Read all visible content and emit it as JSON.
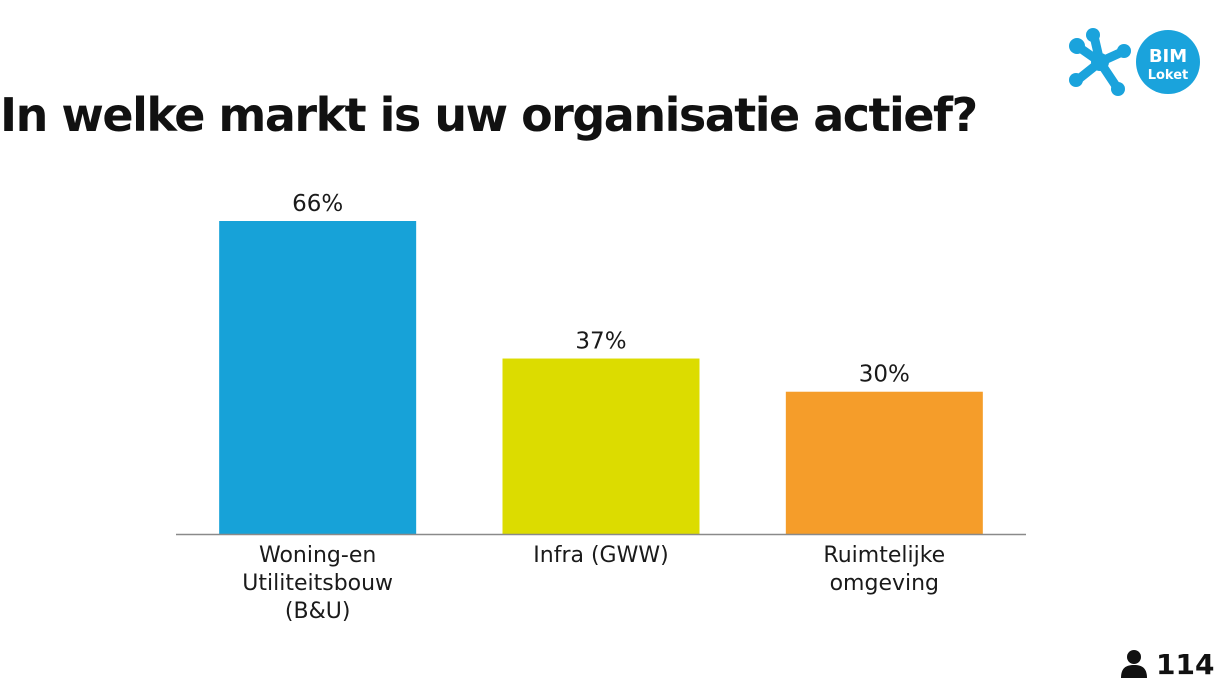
{
  "title": "In welke markt is uw organisatie actief?",
  "logo": {
    "line1": "BIM",
    "line2": "Loket",
    "color": "#1aa3dc",
    "icon": "molecule-icon"
  },
  "respondents": {
    "icon": "person-icon",
    "count": "114"
  },
  "chart_data": {
    "type": "bar",
    "title": "In welke markt is uw organisatie actief?",
    "categories": [
      [
        "Woning-en",
        "Utiliteitsbouw",
        "(B&U)"
      ],
      [
        "Infra (GWW)"
      ],
      [
        "Ruimtelijke",
        "omgeving"
      ]
    ],
    "values": [
      66,
      37,
      30
    ],
    "value_labels": [
      "66%",
      "37%",
      "30%"
    ],
    "colors": [
      "#17a2d8",
      "#dcdc00",
      "#f59d2a"
    ],
    "unit": "%",
    "ylim": [
      0,
      100
    ],
    "grid": false,
    "legend": "none"
  }
}
